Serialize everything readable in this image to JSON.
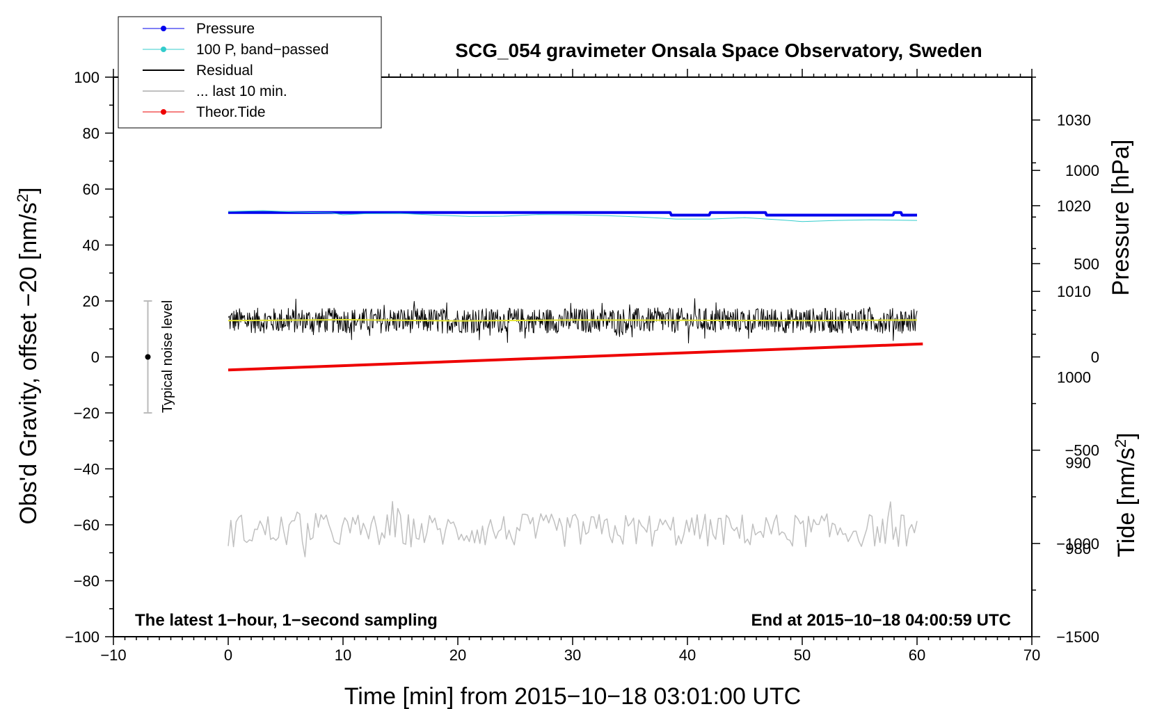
{
  "chart_data": {
    "type": "line",
    "title": "SCG_054 gravimeter Onsala Space Observatory, Sweden",
    "xlabel": "Time [min] from 2015−10−18 03:01:00 UTC",
    "ylabel_left": "Obs'd Gravity, offset −20 [nm/s",
    "ylabel_left_sup": "2",
    "ylabel_left_close": "]",
    "ylabel_right_pressure": "Pressure [hPa]",
    "ylabel_right_tide": "Tide [nm/s",
    "ylabel_right_tide_sup": "2",
    "ylabel_right_tide_close": "]",
    "xlim": [
      -10,
      70
    ],
    "ylim": [
      -100,
      100
    ],
    "pressure_axis_range": [
      969.7,
      1035
    ],
    "tide_axis_range": [
      -1500,
      1500
    ],
    "x_ticks": [
      "−10",
      "0",
      "10",
      "20",
      "30",
      "40",
      "50",
      "60",
      "70"
    ],
    "y_ticks": [
      "100",
      "80",
      "60",
      "40",
      "20",
      "0",
      "−20",
      "−40",
      "−60",
      "−80",
      "−100"
    ],
    "pressure_ticks": [
      "1030",
      "1020",
      "1010",
      "1000",
      "990",
      "980"
    ],
    "tide_ticks": [
      "1000",
      "500",
      "0",
      "−500",
      "−1000",
      "−1500"
    ],
    "legend": [
      {
        "label": "Pressure",
        "color": "#0000ee",
        "marker": "dot"
      },
      {
        "label": "100 P, band−passed",
        "color": "#33cccc",
        "marker": "dot"
      },
      {
        "label": "Residual",
        "color": "#000000",
        "marker": "line"
      },
      {
        "label": "... last 10 min.",
        "color": "#c0c0c0",
        "marker": "line"
      },
      {
        "label": "Theor.Tide",
        "color": "#ee0000",
        "marker": "dot"
      }
    ],
    "series": [
      {
        "name": "Pressure",
        "axis": "pressure_hPa",
        "color": "#0000ee",
        "x": [
          0,
          38.5,
          38.6,
          41.9,
          42.0,
          46.8,
          46.9,
          57.9,
          58.0,
          58.6,
          58.7,
          60
        ],
        "y": [
          1019.2,
          1019.2,
          1018.9,
          1018.9,
          1019.2,
          1019.2,
          1018.9,
          1018.9,
          1019.2,
          1019.2,
          1018.9,
          1018.9
        ]
      },
      {
        "name": "100 P, band−passed",
        "axis": "gravity",
        "color": "#33cccc",
        "x": [
          0,
          3,
          6,
          9,
          10,
          12,
          15,
          18,
          21,
          24,
          27,
          30,
          33,
          36,
          39,
          42,
          45,
          48,
          50,
          53,
          56,
          60
        ],
        "y": [
          52,
          52.3,
          51.8,
          51.5,
          50.8,
          51.2,
          51.3,
          50.7,
          50.2,
          50.3,
          50.9,
          50.8,
          50.5,
          50.0,
          49.3,
          49.3,
          49.8,
          49.0,
          48.4,
          48.8,
          49.0,
          48.8
        ]
      },
      {
        "name": "Residual",
        "axis": "gravity",
        "color": "#000000",
        "style": "noise",
        "x_range": [
          0,
          60
        ],
        "mean": 13,
        "amplitude": 4.5
      },
      {
        "name": "Residual (smoothed)",
        "axis": "gravity",
        "color": "#e6e633",
        "x": [
          0,
          10,
          20,
          30,
          40,
          50,
          60
        ],
        "y": [
          13,
          13.3,
          12.9,
          13.2,
          13.1,
          13.0,
          13.2
        ]
      },
      {
        "name": "... last 10 min.",
        "axis": "gravity",
        "color": "#c0c0c0",
        "style": "noise",
        "x_range": [
          0,
          60
        ],
        "mean": -62,
        "amplitude": 6
      },
      {
        "name": "Theor.Tide",
        "axis": "tide_nm_s2",
        "color": "#ee0000",
        "x": [
          0,
          60.5
        ],
        "y": [
          -70,
          70
        ]
      }
    ],
    "noise_bar": {
      "x": -7,
      "center": 0,
      "low": -20,
      "high": 20,
      "label": "Typical noise level"
    },
    "annotations": {
      "left": "The latest 1−hour, 1−second sampling",
      "right": "End at 2015−10−18 04:00:59 UTC"
    }
  }
}
